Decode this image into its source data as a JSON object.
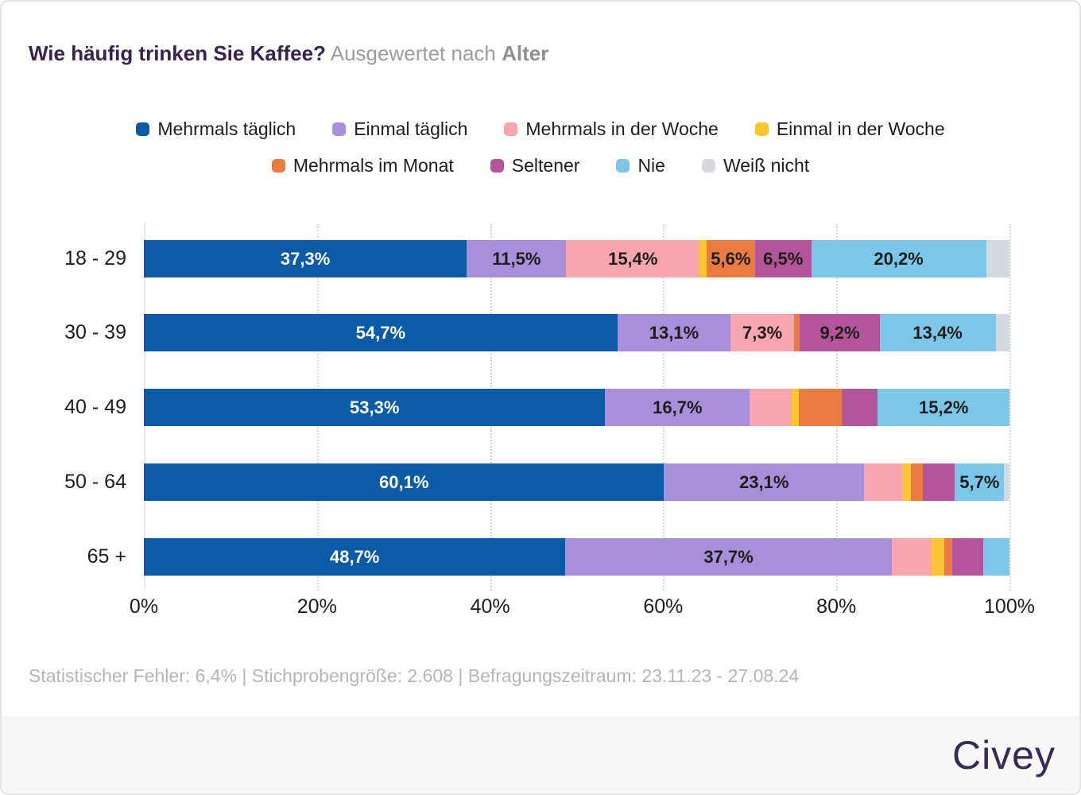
{
  "header": {
    "question": "Wie häufig trinken Sie Kaffee?",
    "subtitle_prefix": " Ausgewertet nach ",
    "subtitle_emphasis": "Alter"
  },
  "chart_data": {
    "type": "bar",
    "variant": "horizontal-stacked",
    "unit": "%",
    "title": "Wie häufig trinken Sie Kaffee? Ausgewertet nach Alter",
    "categories": [
      "18 - 29",
      "30 - 39",
      "40 - 49",
      "50 - 64",
      "65 +"
    ],
    "series": [
      {
        "name": "Mehrmals täglich",
        "color": "#0b5aa5",
        "label_color": "#ffffff",
        "values": [
          37.3,
          54.7,
          53.3,
          60.1,
          48.7
        ],
        "labels": [
          "37,3%",
          "54,7%",
          "53,3%",
          "60,1%",
          "48,7%"
        ]
      },
      {
        "name": "Einmal täglich",
        "color": "#a78fd9",
        "label_color": "#1d1d1b",
        "values": [
          11.5,
          13.1,
          16.7,
          23.1,
          37.7
        ],
        "labels": [
          "11,5%",
          "13,1%",
          "16,7%",
          "23,1%",
          "37,7%"
        ]
      },
      {
        "name": "Mehrmals in der Woche",
        "color": "#f7a5b1",
        "label_color": "#1d1d1b",
        "values": [
          15.4,
          7.3,
          4.8,
          4.4,
          4.6
        ],
        "labels": [
          "15,4%",
          "7,3%",
          "",
          "",
          ""
        ]
      },
      {
        "name": "Einmal in der Woche",
        "color": "#fbc632",
        "label_color": "#1d1d1b",
        "values": [
          0.8,
          0.0,
          0.9,
          1.0,
          1.5
        ],
        "labels": [
          "",
          "",
          "",
          "",
          ""
        ]
      },
      {
        "name": "Mehrmals im Monat",
        "color": "#eb7c41",
        "label_color": "#1d1d1b",
        "values": [
          5.6,
          0.7,
          4.9,
          1.4,
          0.9
        ],
        "labels": [
          "5,6%",
          "",
          "",
          "",
          ""
        ]
      },
      {
        "name": "Seltener",
        "color": "#b4549b",
        "label_color": "#1d1d1b",
        "values": [
          6.5,
          9.2,
          4.2,
          3.7,
          3.6
        ],
        "labels": [
          "6,5%",
          "9,2%",
          "",
          "",
          ""
        ]
      },
      {
        "name": "Nie",
        "color": "#7cc6e9",
        "label_color": "#1d1d1b",
        "values": [
          20.2,
          13.4,
          15.2,
          5.7,
          3.0
        ],
        "labels": [
          "20,2%",
          "13,4%",
          "15,2%",
          "5,7%",
          ""
        ]
      },
      {
        "name": "Weiß nicht",
        "color": "#d3d9df",
        "label_color": "#1d1d1b",
        "values": [
          2.7,
          1.6,
          0.0,
          0.6,
          0.0
        ],
        "labels": [
          "",
          "",
          "",
          "",
          ""
        ]
      }
    ],
    "x_ticks": [
      "0%",
      "20%",
      "40%",
      "60%",
      "80%",
      "100%"
    ],
    "xlim": [
      0,
      100
    ],
    "grid": "dotted-vertical",
    "legend_position": "top-center"
  },
  "footer": {
    "stats_line": "Statistischer Fehler: 6,4% | Stichprobengröße: 2.608 | Befragungszeitraum: 23.11.23 - 27.08.24"
  },
  "brand": {
    "name": "Civey",
    "color": "#382a56"
  }
}
